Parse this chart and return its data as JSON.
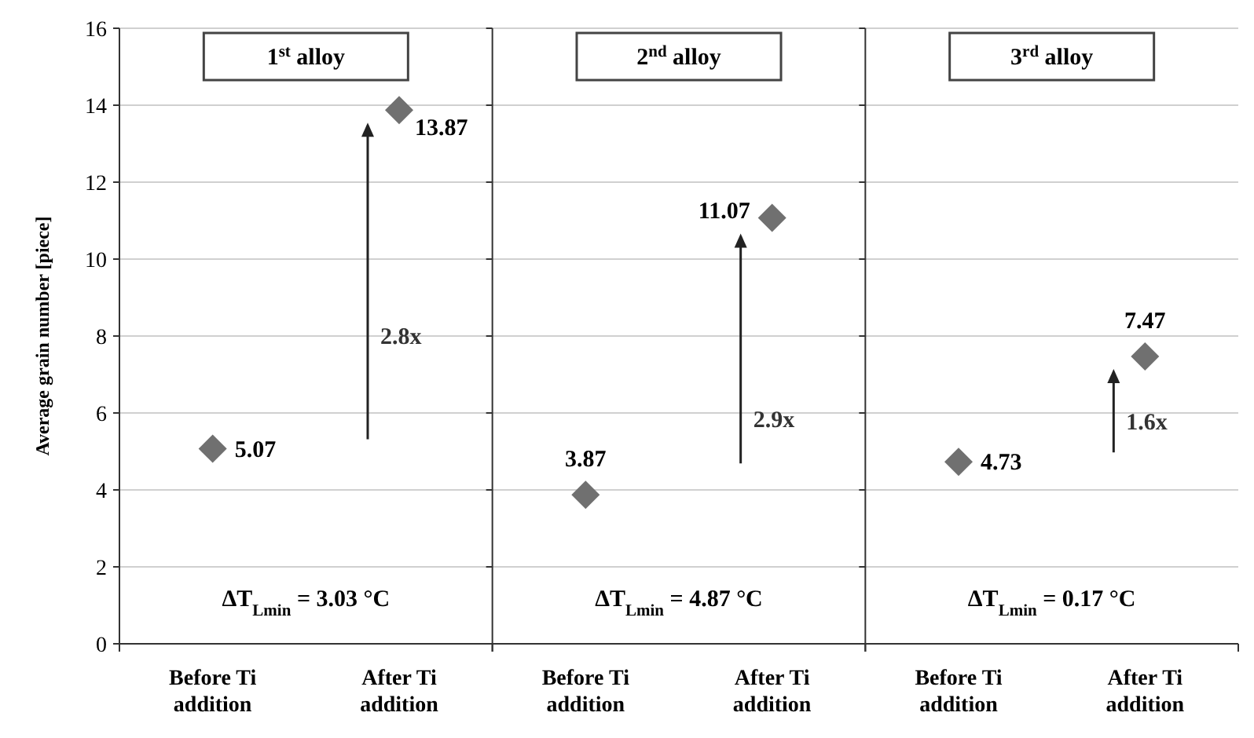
{
  "chart_data": [
    {
      "type": "scatter",
      "title": "1$^{st}$ alloy",
      "ylabel": "Average grain number [piece]",
      "categories": [
        "Before Ti addition",
        "After Ti addition"
      ],
      "values": [
        5.07,
        13.87
      ],
      "color": "#707070",
      "marker": "diamond",
      "data_labels": true,
      "ylim": [
        0,
        16
      ],
      "yticks": [
        0,
        2,
        4,
        6,
        8,
        10,
        12,
        14,
        16
      ],
      "grid": "y",
      "annotations": [
        "ΔT$_{Lmin}$ = 3.03 °C",
        "2.8x"
      ]
    },
    {
      "type": "scatter",
      "title": "2$^{nd}$ alloy",
      "categories": [
        "Before Ti addition",
        "After Ti addition"
      ],
      "values": [
        3.87,
        11.07
      ],
      "color": "#707070",
      "marker": "diamond",
      "data_labels": true,
      "ylim": [
        0,
        16
      ],
      "yticks": [
        0,
        2,
        4,
        6,
        8,
        10,
        12,
        14,
        16
      ],
      "grid": "y",
      "tick_labels": "x",
      "annotations": [
        "ΔT$_{Lmin}$ = 4.87 °C",
        "2.9x"
      ]
    },
    {
      "type": "scatter",
      "title": "3$^{rd}$ alloy",
      "categories": [
        "Before Ti addition",
        "After Ti addition"
      ],
      "values": [
        4.73,
        7.47
      ],
      "color": "#707070",
      "marker": "diamond",
      "data_labels": true,
      "ylim": [
        0,
        16
      ],
      "yticks": [
        0,
        2,
        4,
        6,
        8,
        10,
        12,
        14,
        16
      ],
      "grid": "y",
      "tick_labels": "x",
      "annotations": [
        "ΔT$_{Lmin}$ = 0.17 °C",
        "1.6x"
      ]
    }
  ]
}
